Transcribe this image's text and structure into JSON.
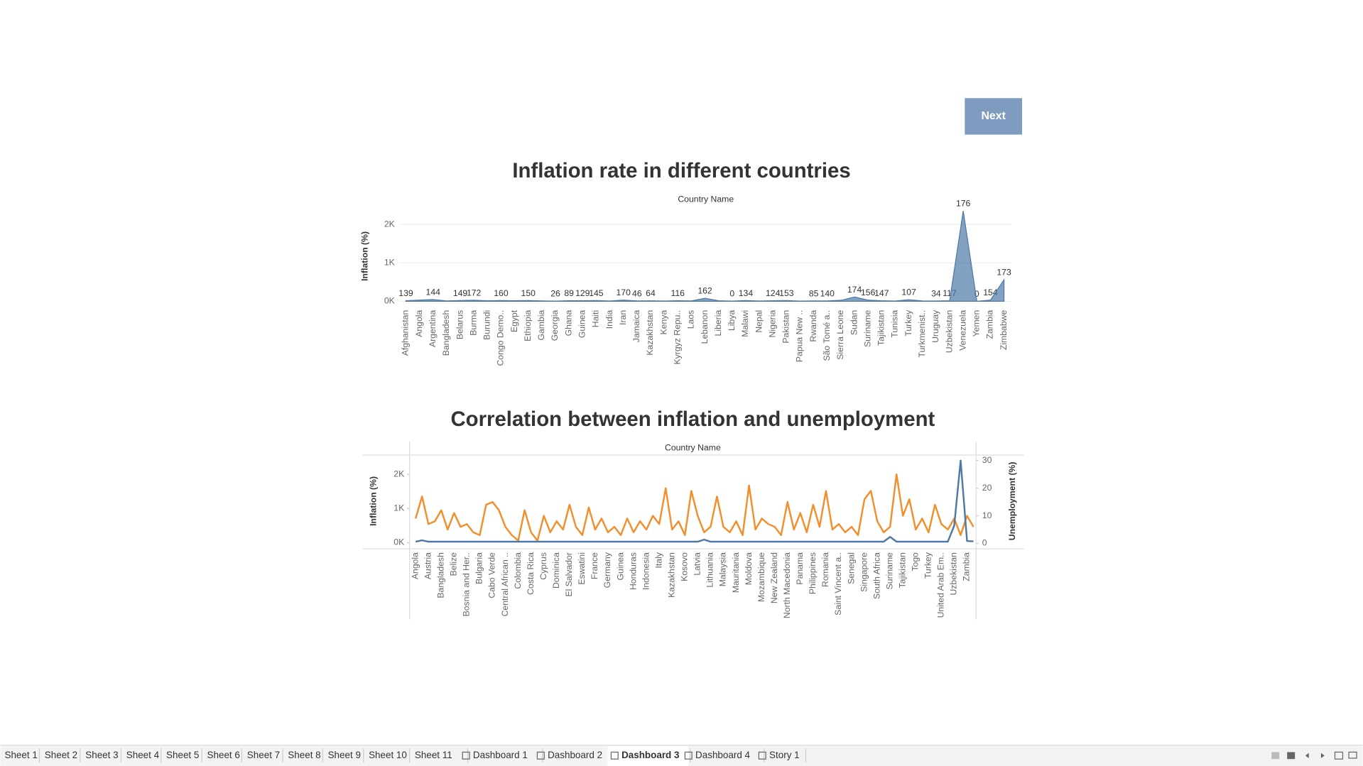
{
  "button": "Next",
  "tabs": [
    "Sheet 1",
    "Sheet 2",
    "Sheet 3",
    "Sheet 4",
    "Sheet 5",
    "Sheet 6",
    "Sheet 7",
    "Sheet 8",
    "Sheet 9",
    "Sheet 10",
    "Sheet 11",
    "Dashboard 1",
    "Dashboard 2",
    "Dashboard 3",
    "Dashboard 4",
    "Story 1"
  ],
  "active_tab": 13,
  "chart_data": [
    {
      "type": "area",
      "title": "Inflation rate in different countries",
      "xlabel": "Country Name",
      "ylabel": "Inflation (%)",
      "color": "#4e79a7",
      "categories": [
        "Afghanistan",
        "Angola",
        "Argentina",
        "Bangladesh",
        "Belarus",
        "Burma",
        "Burundi",
        "Congo Demo..",
        "Egypt",
        "Ethiopia",
        "Gambia",
        "Georgia",
        "Ghana",
        "Guinea",
        "Haiti",
        "India",
        "Iran",
        "Jamaica",
        "Kazakhstan",
        "Kenya",
        "Kyrgyz Repu..",
        "Laos",
        "Lebanon",
        "Liberia",
        "Libya",
        "Malawi",
        "Nepal",
        "Nigeria",
        "Pakistan",
        "Papua New ..",
        "Rwanda",
        "São Tomé a..",
        "Sierra Leone",
        "Sudan",
        "Suriname",
        "Tajikistan",
        "Tunisia",
        "Turkey",
        "Turkmenist..",
        "Uruguay",
        "Uzbekistan",
        "Venezuela",
        "Yemen",
        "Zambia",
        "Zimbabwe"
      ],
      "values": [
        15,
        30,
        45,
        10,
        20,
        25,
        15,
        20,
        15,
        20,
        10,
        5,
        15,
        15,
        20,
        8,
        30,
        10,
        12,
        8,
        15,
        10,
        80,
        15,
        5,
        20,
        8,
        15,
        20,
        5,
        10,
        10,
        25,
        110,
        30,
        15,
        8,
        40,
        10,
        8,
        15,
        2350,
        0,
        30,
        560
      ],
      "mark_labels": [
        139,
        null,
        144,
        null,
        149,
        172,
        null,
        160,
        null,
        150,
        null,
        26,
        89,
        129,
        145,
        null,
        170,
        46,
        64,
        null,
        116,
        null,
        162,
        null,
        0,
        134,
        null,
        124,
        153,
        null,
        85,
        140,
        null,
        174,
        156,
        147,
        null,
        107,
        null,
        34,
        117,
        176,
        0,
        154,
        173
      ],
      "ylim": [
        -115,
        2370
      ],
      "yticks": [
        {
          "value": 0,
          "label": "0K"
        },
        {
          "value": 1000,
          "label": "1K"
        },
        {
          "value": 2000,
          "label": "2K"
        }
      ],
      "grid": true
    },
    {
      "type": "line",
      "title": "Correlation between inflation and unemployment",
      "xlabel": "Country Name",
      "ylabel": "Inflation (%)",
      "y2label": "Unemployment (%)",
      "categories": [
        "Angola",
        null,
        "Austria",
        null,
        "Bangladesh",
        null,
        "Belize",
        null,
        "Bosnia and Her..",
        null,
        "Bulgaria",
        null,
        "Cabo Verde",
        null,
        "Central African ..",
        null,
        "Colombia",
        null,
        "Costa Rica",
        null,
        "Cyprus",
        null,
        "Dominica",
        null,
        "El Salvador",
        null,
        "Eswatini",
        null,
        "France",
        null,
        "Germany",
        null,
        "Guinea",
        null,
        "Honduras",
        null,
        "Indonesia",
        null,
        "Italy",
        null,
        "Kazakhstan",
        null,
        "Kosovo",
        null,
        "Latvia",
        null,
        "Lithuania",
        null,
        "Malaysia",
        null,
        "Mauritania",
        null,
        "Moldova",
        null,
        "Mozambique",
        null,
        "New Zealand",
        null,
        "North Macedonia",
        null,
        "Panama",
        null,
        "Philippines",
        null,
        "Romania",
        null,
        "Saint Vincent a..",
        null,
        "Senegal",
        null,
        "Singapore",
        null,
        "South Africa",
        null,
        "Suriname",
        null,
        "Tajikistan",
        null,
        "Togo",
        null,
        "Turkey",
        null,
        "United Arab Em..",
        null,
        "Uzbekistan",
        null,
        "Zambia",
        null
      ],
      "series": [
        {
          "color": "#4e79a7",
          "axis": "y",
          "values": [
            30,
            70,
            30,
            30,
            30,
            30,
            30,
            30,
            30,
            30,
            30,
            30,
            30,
            30,
            30,
            30,
            30,
            30,
            30,
            30,
            30,
            30,
            30,
            30,
            30,
            30,
            30,
            30,
            30,
            30,
            30,
            30,
            30,
            30,
            30,
            30,
            30,
            30,
            30,
            30,
            30,
            30,
            30,
            30,
            30,
            90,
            30,
            30,
            30,
            30,
            30,
            30,
            30,
            30,
            30,
            30,
            30,
            30,
            30,
            30,
            30,
            30,
            30,
            30,
            30,
            30,
            30,
            30,
            30,
            30,
            30,
            30,
            30,
            30,
            170,
            30,
            30,
            30,
            30,
            30,
            30,
            30,
            30,
            30,
            500,
            2400,
            50,
            40
          ]
        },
        {
          "color": "#f28e2b",
          "axis": "y2",
          "values": [
            9,
            17,
            7,
            8,
            12,
            5,
            11,
            6,
            7,
            4,
            3,
            14,
            15,
            12,
            6,
            3,
            1,
            12,
            4,
            1,
            10,
            4,
            8,
            5,
            14,
            6,
            3,
            13,
            5,
            9,
            4,
            6,
            3,
            9,
            4,
            8,
            5,
            10,
            7,
            20,
            5,
            8,
            3,
            19,
            10,
            4,
            6,
            17,
            6,
            4,
            8,
            3,
            21,
            5,
            9,
            7,
            6,
            3,
            15,
            5,
            11,
            4,
            14,
            6,
            19,
            5,
            7,
            4,
            6,
            3,
            16,
            19,
            8,
            4,
            6,
            25,
            10,
            16,
            5,
            9,
            4,
            14,
            7,
            5,
            9,
            3,
            10,
            6
          ]
        }
      ],
      "ylim": [
        -180,
        2560
      ],
      "yticks": [
        {
          "value": 0,
          "label": "0K"
        },
        {
          "value": 1000,
          "label": "1K"
        },
        {
          "value": 2000,
          "label": "2K"
        }
      ],
      "y2lim": [
        -2,
        32
      ],
      "y2ticks": [
        0,
        10,
        20,
        30
      ]
    }
  ]
}
